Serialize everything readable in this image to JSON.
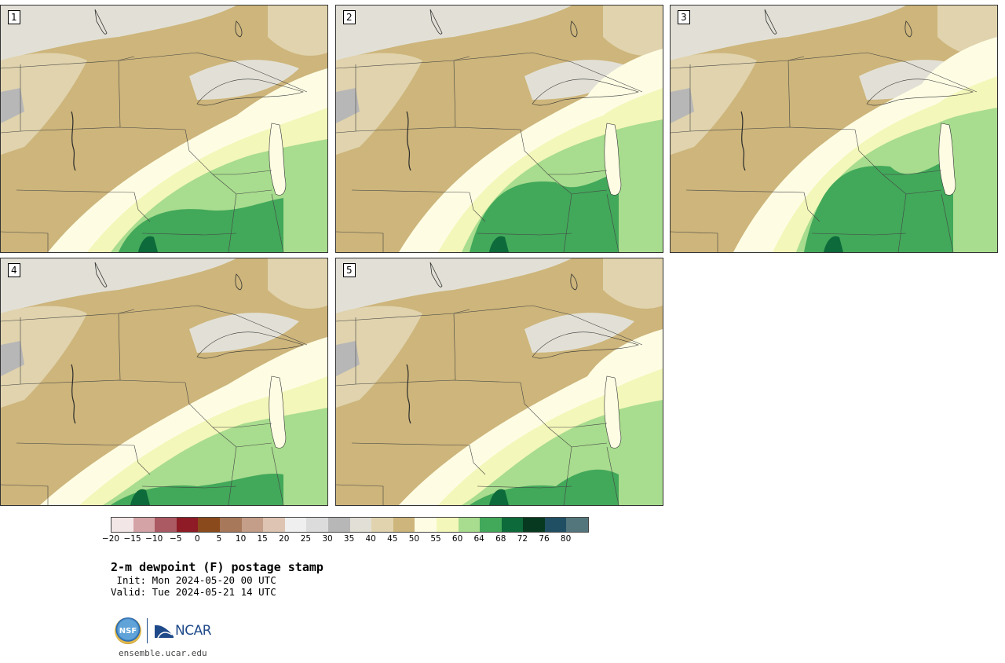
{
  "panels": [
    {
      "label": "1"
    },
    {
      "label": "2"
    },
    {
      "label": "3"
    },
    {
      "label": "4"
    },
    {
      "label": "5"
    }
  ],
  "colorbar": {
    "colors": [
      "#f3e6e6",
      "#d4a3a6",
      "#ab5963",
      "#8e1b25",
      "#8b4a1c",
      "#a8785a",
      "#c49e88",
      "#dec4b2",
      "#efefef",
      "#dcdcdc",
      "#b7b7b7",
      "#e2e0d6",
      "#e0d3ad",
      "#cdb57b",
      "#fefde4",
      "#f3f7b9",
      "#a8dc8e",
      "#42a85a",
      "#0d6a3a",
      "#06391f",
      "#204f63",
      "#53767c"
    ],
    "tick_labels": [
      "−20",
      "−15",
      "−10",
      "−5",
      "0",
      "5",
      "10",
      "15",
      "20",
      "25",
      "30",
      "35",
      "40",
      "45",
      "50",
      "55",
      "60",
      "64",
      "68",
      "72",
      "76",
      "80"
    ]
  },
  "legend_colors": {
    "tan": "#cdb57b",
    "light_tan": "#e0d3ad",
    "pale_gray": "#e2e0d6",
    "gray": "#b7b7b7",
    "cream": "#fefde4",
    "pale_yellow": "#f3f7b9",
    "light_green": "#a8dc8e",
    "green": "#42a85a",
    "dark_green": "#0d6a3a"
  },
  "title": "2-m dewpoint (F) postage stamp",
  "init": " Init: Mon 2024-05-20 00 UTC",
  "valid": "Valid: Tue 2024-05-21 14 UTC",
  "logos": {
    "nsf": "NSF",
    "ncar": "NCAR"
  },
  "website": "ensemble.ucar.edu"
}
